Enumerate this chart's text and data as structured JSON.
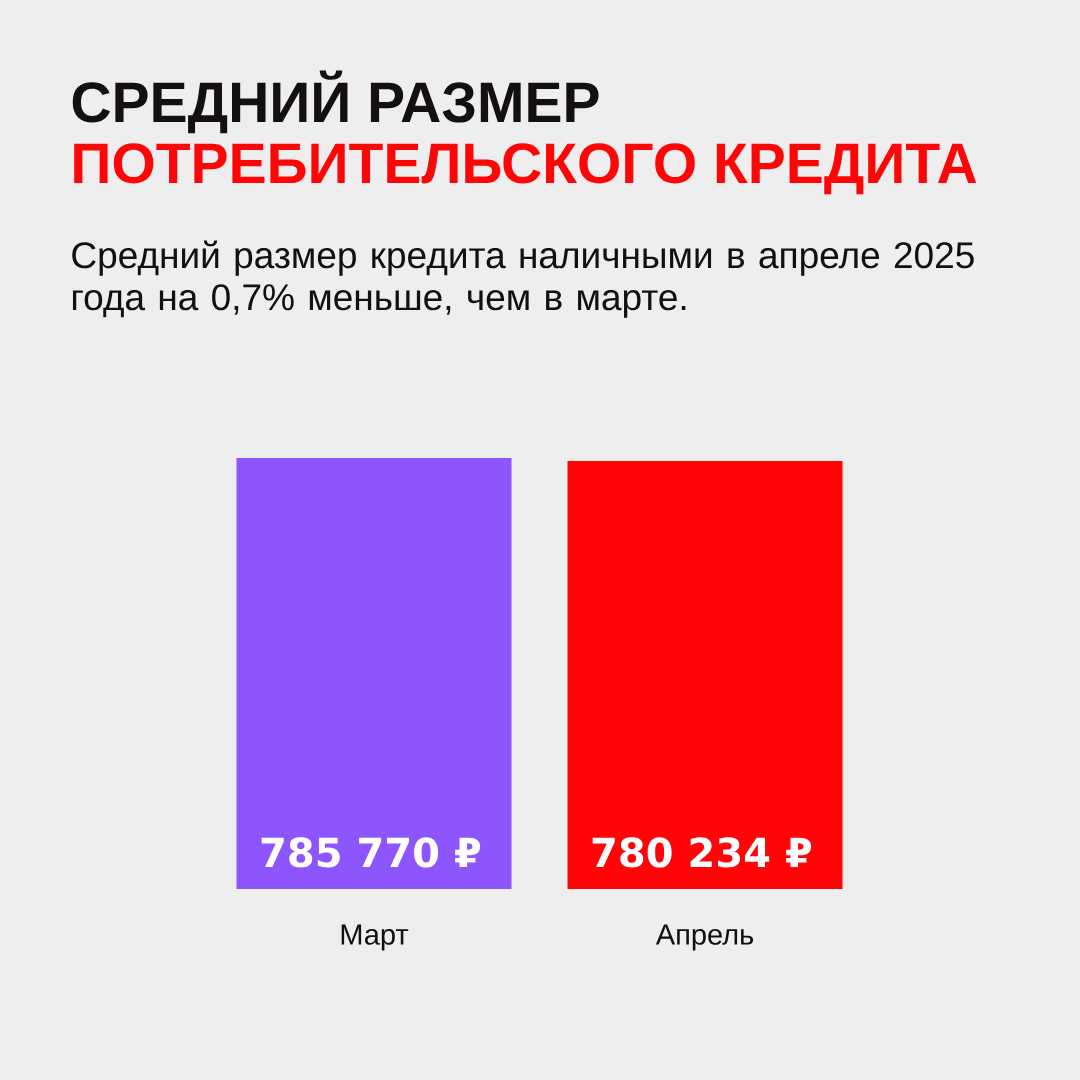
{
  "chart_data": {
    "type": "bar",
    "title": "СРЕДНИЙ РАЗМЕР",
    "subtitle": "ПОТРЕБИТЕЛЬСКОГО КРЕДИТА",
    "annotations": [
      "Средний размер кредита наличными в апреле 2025 года на 0,7% меньше, чем в марте."
    ],
    "categories": [
      "Март",
      "Апрель"
    ],
    "values": [
      785770,
      780234
    ],
    "colors": [
      "#8c55fd",
      "#ff0508"
    ],
    "value_labels": [
      "785 770 ₽",
      "780 234 ₽"
    ],
    "tick_labels": "x"
  }
}
